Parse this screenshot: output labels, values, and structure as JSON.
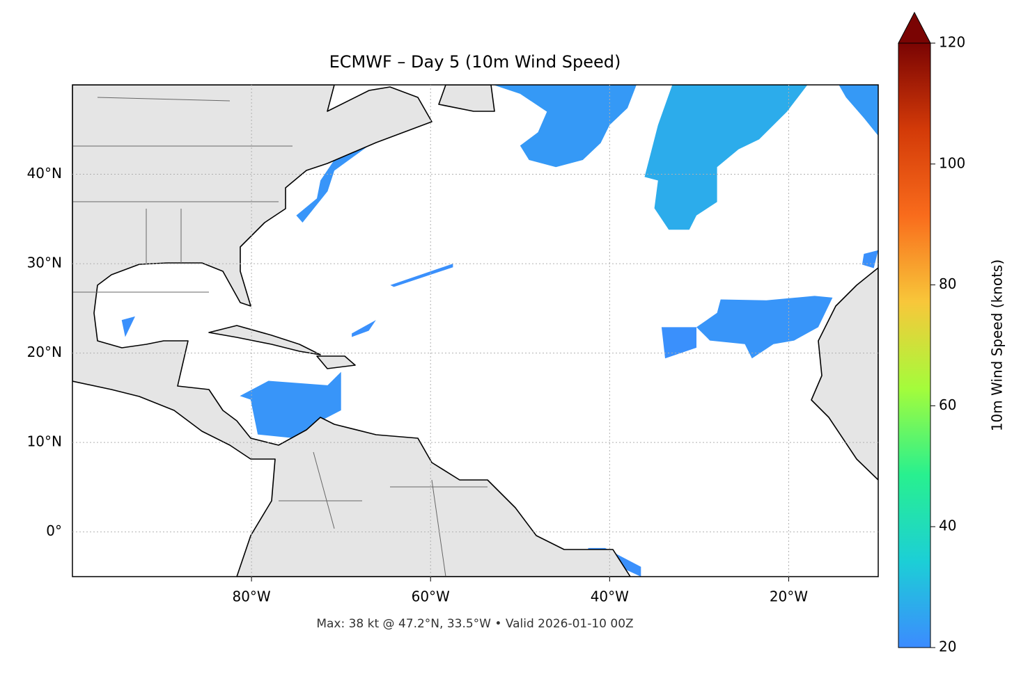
{
  "chart_data": {
    "type": "map",
    "title": "ECMWF – Day 5 (10m Wind Speed)",
    "footnote": "Max: 38 kt @ 47.2°N, 33.5°W • Valid 2026-01-10 00Z",
    "xlim": [
      -100,
      -10
    ],
    "ylim": [
      -5,
      50
    ],
    "xticks": [
      {
        "value": -80,
        "label": "80°W"
      },
      {
        "value": -60,
        "label": "60°W"
      },
      {
        "value": -40,
        "label": "40°W"
      },
      {
        "value": -20,
        "label": "20°W"
      }
    ],
    "yticks": [
      {
        "value": 0,
        "label": "0°"
      },
      {
        "value": 10,
        "label": "10°N"
      },
      {
        "value": 20,
        "label": "20°N"
      },
      {
        "value": 30,
        "label": "30°N"
      },
      {
        "value": 40,
        "label": "40°N"
      }
    ],
    "grid": true,
    "colorbar": {
      "label": "10m Wind Speed (knots)",
      "clim": [
        20,
        120
      ],
      "ticks": [
        20,
        40,
        60,
        80,
        100,
        120
      ],
      "extend": "max",
      "colormap": [
        "#3c8bff",
        "#1ccfd6",
        "#28f08f",
        "#a4fc3b",
        "#f8c73a",
        "#f96c1c",
        "#d33a08",
        "#7a0403"
      ]
    },
    "wind_areas": [
      {
        "speed": 23,
        "lon": [
          -53,
          -37,
          -38,
          -40,
          -41,
          -43,
          -46,
          -49,
          -50,
          -48,
          -47,
          -50
        ],
        "lat": [
          50,
          50,
          47.4,
          45.5,
          43.5,
          41.6,
          40.8,
          41.6,
          43.2,
          44.7,
          47,
          49
        ]
      },
      {
        "speed": 27,
        "lon": [
          -33,
          -17.9,
          -20.2,
          -23.3,
          -25.6,
          -28,
          -28,
          -30.3,
          -31.1,
          -33.4,
          -35,
          -34.6,
          -36.1,
          -35.4,
          -34.6
        ],
        "lat": [
          50,
          50,
          47,
          43.9,
          42.8,
          40.8,
          36.9,
          35.4,
          33.8,
          33.8,
          36.2,
          39.3,
          39.7,
          42.4,
          45.5
        ]
      },
      {
        "speed": 23,
        "lon": [
          -14.4,
          -10,
          -10,
          -11.6,
          -13.6
        ],
        "lat": [
          50,
          50,
          44.3,
          46.3,
          48.6
        ]
      },
      {
        "speed": 22,
        "lon": [
          -27.6,
          -22.5,
          -17.1,
          -15.1,
          -16.7,
          -19.4,
          -21.7,
          -24.1,
          -24.9,
          -28.8,
          -30.3,
          -28
        ],
        "lat": [
          26,
          25.9,
          26.4,
          26.2,
          22.9,
          21.4,
          21,
          19.4,
          21,
          21.4,
          22.9,
          24.5
        ]
      },
      {
        "speed": 21,
        "lon": [
          -34.2,
          -30.3,
          -30.3,
          -33.8
        ],
        "lat": [
          22.9,
          22.9,
          20.6,
          19.4
        ]
      },
      {
        "speed": 22,
        "lon": [
          -78.1,
          -71.5,
          -70,
          -70,
          -72.3,
          -75.4,
          -79.3,
          -80.1,
          -81.3
        ],
        "lat": [
          16.9,
          16.4,
          17.9,
          13.6,
          12.4,
          10.5,
          10.9,
          14.8,
          15.2
        ]
      },
      {
        "speed": 22,
        "lon": [
          -69.2,
          -66.9,
          -70.75,
          -71.5,
          -74.3,
          -75,
          -72.7,
          -72.3,
          -70.75
        ],
        "lat": [
          43.5,
          43.2,
          40.4,
          38.1,
          34.6,
          35.4,
          37.3,
          39.3,
          41.6
        ]
      },
      {
        "speed": 21,
        "lon": [
          -94.5,
          -93,
          -94.1
        ],
        "lat": [
          23.7,
          24.1,
          21.8
        ]
      },
      {
        "speed": 21,
        "lon": [
          -64.5,
          -57.5,
          -57.5,
          -64.1
        ],
        "lat": [
          27.6,
          30,
          29.6,
          27.4
        ]
      },
      {
        "speed": 21,
        "lon": [
          -68.8,
          -66.1,
          -66.9,
          -68.8
        ],
        "lat": [
          22.2,
          23.7,
          22.5,
          21.8
        ]
      },
      {
        "speed": 21,
        "lon": [
          -11.6,
          -10,
          -10.5,
          -11.8
        ],
        "lat": [
          31.1,
          31.5,
          29.5,
          29.9
        ]
      },
      {
        "speed": 21,
        "lon": [
          -42.4,
          -40.5,
          -36.5,
          -36.5,
          -42.4
        ],
        "lat": [
          -1.8,
          -1.8,
          -3.9,
          -5,
          -2.3
        ]
      }
    ]
  }
}
